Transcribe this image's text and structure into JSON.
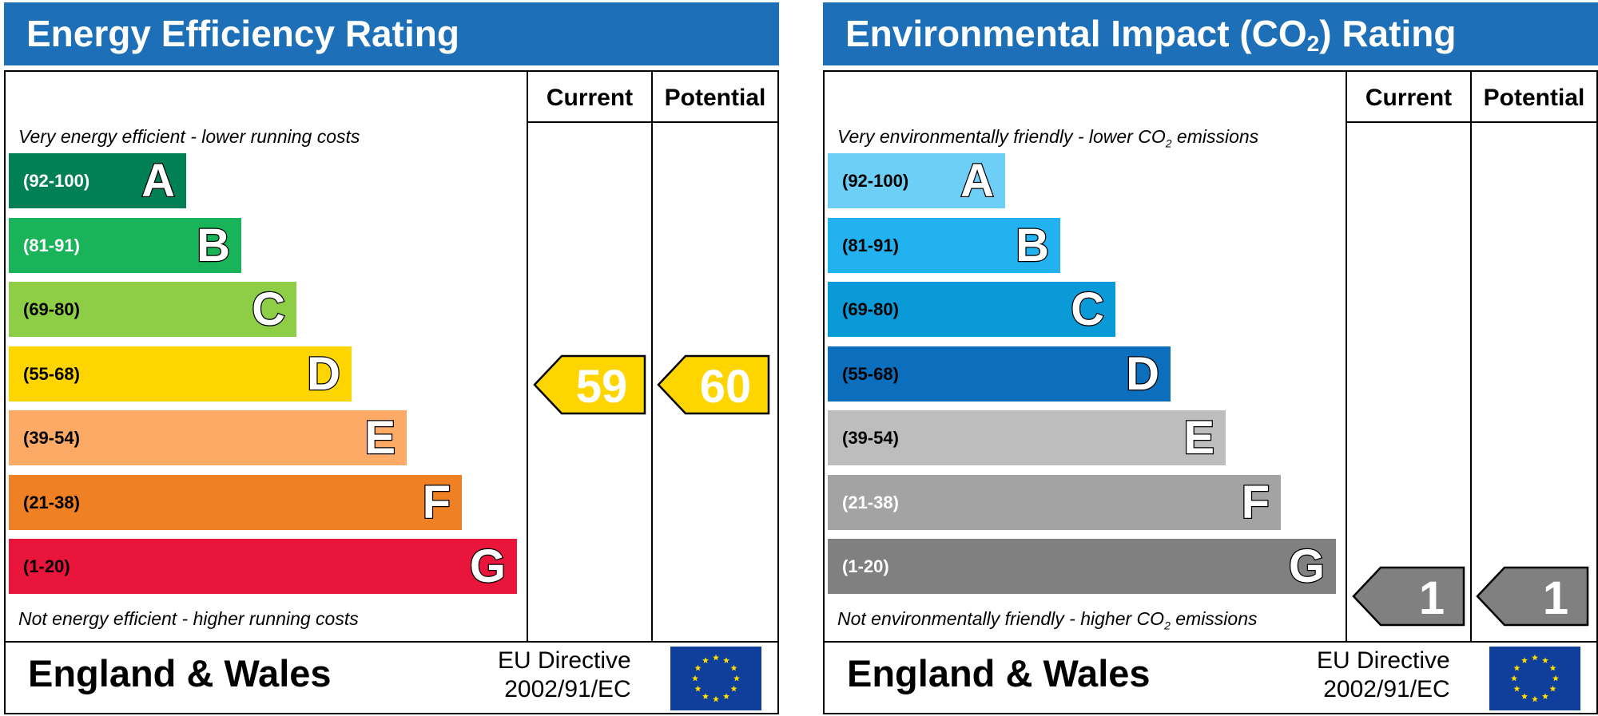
{
  "energy": {
    "title": "Energy Efficiency Rating",
    "headers": {
      "current": "Current",
      "potential": "Potential"
    },
    "top_caption": "Very energy efficient - lower running costs",
    "bottom_caption": "Not energy efficient - higher running costs",
    "bands": [
      {
        "range": "(92-100)",
        "letter": "A",
        "color": "#008054",
        "text_color": "#ffffff"
      },
      {
        "range": "(81-91)",
        "letter": "B",
        "color": "#19b459",
        "text_color": "#ffffff"
      },
      {
        "range": "(69-80)",
        "letter": "C",
        "color": "#8dce46",
        "text_color": "#000000"
      },
      {
        "range": "(55-68)",
        "letter": "D",
        "color": "#ffd500",
        "text_color": "#000000"
      },
      {
        "range": "(39-54)",
        "letter": "E",
        "color": "#fcaa65",
        "text_color": "#000000"
      },
      {
        "range": "(21-38)",
        "letter": "F",
        "color": "#ef8023",
        "text_color": "#000000"
      },
      {
        "range": "(1-20)",
        "letter": "G",
        "color": "#e9153b",
        "text_color": "#000000"
      }
    ],
    "current": {
      "value": "59",
      "band": "D",
      "color": "#ffd500"
    },
    "potential": {
      "value": "60",
      "band": "D",
      "color": "#ffd500"
    },
    "footer": "England & Wales",
    "directive_line1": "EU Directive",
    "directive_line2": "2002/91/EC"
  },
  "environment": {
    "title_main": "Environmental Impact (CO",
    "title_sub": "2",
    "title_end": ") Rating",
    "headers": {
      "current": "Current",
      "potential": "Potential"
    },
    "top_caption_main": "Very environmentally friendly - lower CO",
    "top_caption_sub": "2",
    "top_caption_end": " emissions",
    "bottom_caption_main": "Not environmentally friendly - higher CO",
    "bottom_caption_sub": "2",
    "bottom_caption_end": " emissions",
    "bands": [
      {
        "range": "(92-100)",
        "letter": "A",
        "color": "#6dcff6",
        "text_color": "#000000"
      },
      {
        "range": "(81-91)",
        "letter": "B",
        "color": "#23b2f0",
        "text_color": "#000000"
      },
      {
        "range": "(69-80)",
        "letter": "C",
        "color": "#0a9ad7",
        "text_color": "#000000"
      },
      {
        "range": "(55-68)",
        "letter": "D",
        "color": "#0b6fbd",
        "text_color": "#000000"
      },
      {
        "range": "(39-54)",
        "letter": "E",
        "color": "#bdbdbd",
        "text_color": "#000000"
      },
      {
        "range": "(21-38)",
        "letter": "F",
        "color": "#a3a3a3",
        "text_color": "#ffffff"
      },
      {
        "range": "(1-20)",
        "letter": "G",
        "color": "#808080",
        "text_color": "#ffffff"
      }
    ],
    "current": {
      "value": "1",
      "band": "G",
      "color": "#808080"
    },
    "potential": {
      "value": "1",
      "band": "G",
      "color": "#808080"
    },
    "footer": "England & Wales",
    "directive_line1": "EU Directive",
    "directive_line2": "2002/91/EC"
  },
  "colors": {
    "title_bar": "#1d6fb8",
    "eu_flag": "#0f3f9a",
    "eu_star": "#ffdd00"
  },
  "chart_data": [
    {
      "type": "bar",
      "title": "Energy Efficiency Rating",
      "categories": [
        "A",
        "B",
        "C",
        "D",
        "E",
        "F",
        "G"
      ],
      "ranges": [
        "92-100",
        "81-91",
        "69-80",
        "55-68",
        "39-54",
        "21-38",
        "1-20"
      ],
      "current": 59,
      "potential": 60
    },
    {
      "type": "bar",
      "title": "Environmental Impact (CO2) Rating",
      "categories": [
        "A",
        "B",
        "C",
        "D",
        "E",
        "F",
        "G"
      ],
      "ranges": [
        "92-100",
        "81-91",
        "69-80",
        "55-68",
        "39-54",
        "21-38",
        "1-20"
      ],
      "current": 1,
      "potential": 1
    }
  ]
}
